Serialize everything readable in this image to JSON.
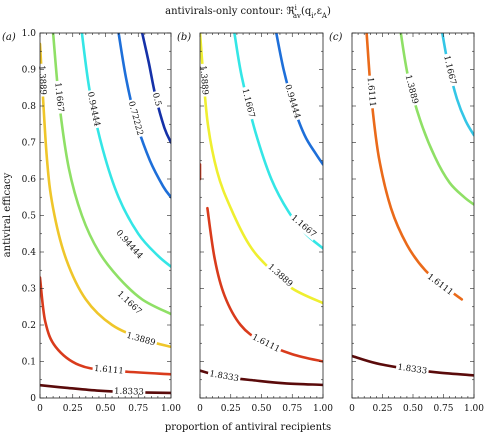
{
  "figure": {
    "title_prefix": "antivirals-only contour: ",
    "title_symbol": "ℜ",
    "title_superscript": "i",
    "title_subscript": "av",
    "title_args": "(q",
    "title_args_sub": "i",
    "title_args_mid": ",ε",
    "title_args_sub2": "A",
    "title_args_end": ")",
    "xlabel": "proportion of antiviral recipients",
    "ylabel": "antiviral efficacy"
  },
  "chart_data": [
    {
      "type": "contour",
      "panel_label": "(a)",
      "xlim": [
        0,
        1
      ],
      "ylim": [
        0,
        1
      ],
      "x_ticks": [
        "0",
        "0.25",
        "0.50",
        "0.75",
        "1.00"
      ],
      "y_ticks": [
        "0",
        "0.1",
        "0.2",
        "0.3",
        "0.4",
        "0.5",
        "0.6",
        "0.7",
        "0.8",
        "0.9",
        "1.0"
      ],
      "y_tick_values": [
        0,
        0.1,
        0.2,
        0.3,
        0.4,
        0.5,
        0.6,
        0.7,
        0.8,
        0.9,
        1.0
      ],
      "x_tick_values": [
        0,
        0.25,
        0.5,
        0.75,
        1.0
      ],
      "contours": [
        {
          "level": "1.8333",
          "color": "#5a0a0a",
          "points": [
            [
              0.0,
              0.035
            ],
            [
              0.2,
              0.028
            ],
            [
              0.45,
              0.02
            ],
            [
              0.7,
              0.016
            ],
            [
              1.0,
              0.014
            ]
          ],
          "label_at": 0.68
        },
        {
          "level": "1.6111",
          "color": "#d93b1c",
          "points": [
            [
              0.0,
              0.33
            ],
            [
              0.04,
              0.21
            ],
            [
              0.12,
              0.14
            ],
            [
              0.3,
              0.09
            ],
            [
              0.55,
              0.075
            ],
            [
              1.0,
              0.065
            ]
          ],
          "label_at": 0.68
        },
        {
          "level": "1.3889",
          "color": "#efc62a",
          "points": [
            [
              0.0,
              0.97
            ],
            [
              0.05,
              0.67
            ],
            [
              0.1,
              0.52
            ],
            [
              0.2,
              0.38
            ],
            [
              0.35,
              0.27
            ],
            [
              0.55,
              0.2
            ],
            [
              0.8,
              0.16
            ],
            [
              1.0,
              0.14
            ]
          ],
          "label_at": 0.1
        },
        {
          "level": "1.3889",
          "color": "#efc62a",
          "points": [],
          "label_at": 0.65,
          "label_only": true,
          "label_pos": [
            0.77,
            0.16
          ]
        },
        {
          "level": "1.1667",
          "color": "#8fe066",
          "points": [
            [
              0.1,
              1.0
            ],
            [
              0.15,
              0.8
            ],
            [
              0.22,
              0.63
            ],
            [
              0.32,
              0.5
            ],
            [
              0.45,
              0.4
            ],
            [
              0.6,
              0.33
            ],
            [
              0.78,
              0.27
            ],
            [
              1.0,
              0.23
            ]
          ],
          "label_at": 0.2
        },
        {
          "level": "1.1667",
          "color": "#8fe066",
          "points": [],
          "label_only": true,
          "label_pos": [
            0.68,
            0.26
          ]
        },
        {
          "level": "0.94444",
          "color": "#34e6e6",
          "points": [
            [
              0.32,
              1.0
            ],
            [
              0.38,
              0.84
            ],
            [
              0.48,
              0.68
            ],
            [
              0.6,
              0.55
            ],
            [
              0.75,
              0.45
            ],
            [
              0.9,
              0.39
            ],
            [
              1.0,
              0.36
            ]
          ],
          "label_at": 0.3
        },
        {
          "level": "0.94444",
          "color": "#34e6e6",
          "points": [],
          "label_only": true,
          "label_pos": [
            0.68,
            0.42
          ]
        },
        {
          "level": "0.72222",
          "color": "#1e6fd9",
          "points": [
            [
              0.6,
              1.0
            ],
            [
              0.66,
              0.87
            ],
            [
              0.74,
              0.75
            ],
            [
              0.84,
              0.65
            ],
            [
              0.94,
              0.58
            ],
            [
              1.0,
              0.55
            ]
          ],
          "label_at": 0.5
        },
        {
          "level": "0.5",
          "color": "#1531a8",
          "points": [
            [
              0.78,
              1.0
            ],
            [
              0.83,
              0.92
            ],
            [
              0.88,
              0.83
            ],
            [
              0.95,
              0.74
            ],
            [
              1.0,
              0.7
            ]
          ],
          "label_at": 0.6
        }
      ]
    },
    {
      "type": "contour",
      "panel_label": "(b)",
      "xlim": [
        0,
        1
      ],
      "ylim": [
        0,
        1
      ],
      "x_ticks": [
        "0",
        "0.25",
        "0.50",
        "0.75",
        "1.00"
      ],
      "x_tick_values": [
        0,
        0.25,
        0.5,
        0.75,
        1.0
      ],
      "contours": [
        {
          "level": "1.8333",
          "color": "#5a0a0a",
          "points": [
            [
              0.0,
              0.075
            ],
            [
              0.2,
              0.058
            ],
            [
              0.45,
              0.048
            ],
            [
              0.7,
              0.04
            ],
            [
              1.0,
              0.036
            ]
          ],
          "label_at": 0.2
        },
        {
          "level": "1.6111",
          "color": "#d93b1c",
          "points": [
            [
              0.0,
              0.64
            ],
            [
              0.0,
              0.6
            ]
          ],
          "label_at": -1
        },
        {
          "level": "1.6111",
          "color": "#d93b1c",
          "points": [
            [
              0.06,
              0.52
            ],
            [
              0.12,
              0.38
            ],
            [
              0.2,
              0.28
            ],
            [
              0.33,
              0.2
            ],
            [
              0.5,
              0.155
            ],
            [
              0.75,
              0.12
            ],
            [
              1.0,
              0.1
            ]
          ],
          "label_at": 0.72
        },
        {
          "level": "1.3889",
          "color": "#efef30",
          "points": [
            [
              0.0,
              1.0
            ],
            [
              0.06,
              0.76
            ],
            [
              0.14,
              0.62
            ],
            [
              0.25,
              0.52
            ],
            [
              0.4,
              0.42
            ],
            [
              0.55,
              0.36
            ],
            [
              0.75,
              0.3
            ],
            [
              1.0,
              0.26
            ]
          ],
          "label_at": 0.15
        },
        {
          "level": "1.3889",
          "color": "#efef30",
          "points": [],
          "label_only": true,
          "label_pos": [
            0.65,
            0.335
          ]
        },
        {
          "level": "1.1667",
          "color": "#34e6e6",
          "points": [
            [
              0.28,
              1.0
            ],
            [
              0.34,
              0.88
            ],
            [
              0.45,
              0.73
            ],
            [
              0.58,
              0.6
            ],
            [
              0.72,
              0.51
            ],
            [
              0.86,
              0.45
            ],
            [
              1.0,
              0.41
            ]
          ],
          "label_at": 0.3
        },
        {
          "level": "1.1667",
          "color": "#34e6e6",
          "points": [],
          "label_only": true,
          "label_pos": [
            0.84,
            0.47
          ]
        },
        {
          "level": "0.94444",
          "color": "#1e6fd9",
          "points": [
            [
              0.62,
              1.0
            ],
            [
              0.68,
              0.9
            ],
            [
              0.76,
              0.8
            ],
            [
              0.85,
              0.72
            ],
            [
              0.94,
              0.67
            ],
            [
              1.0,
              0.64
            ]
          ],
          "label_at": 0.5
        }
      ]
    },
    {
      "type": "contour",
      "panel_label": "(c)",
      "xlim": [
        0,
        1
      ],
      "ylim": [
        0,
        1
      ],
      "x_ticks": [
        "0",
        "0.25",
        "0.50",
        "0.75",
        "1.00"
      ],
      "x_tick_values": [
        0,
        0.25,
        0.5,
        0.75,
        1.0
      ],
      "contours": [
        {
          "level": "1.8333",
          "color": "#5a0a0a",
          "points": [
            [
              0.0,
              0.115
            ],
            [
              0.2,
              0.095
            ],
            [
              0.45,
              0.08
            ],
            [
              0.7,
              0.07
            ],
            [
              1.0,
              0.062
            ]
          ],
          "label_at": 0.5
        },
        {
          "level": "1.6111",
          "color": "#ea6a1a",
          "points": [
            [
              0.12,
              1.0
            ],
            [
              0.16,
              0.82
            ],
            [
              0.22,
              0.66
            ],
            [
              0.32,
              0.52
            ],
            [
              0.45,
              0.42
            ],
            [
              0.6,
              0.35
            ],
            [
              0.78,
              0.3
            ],
            [
              0.9,
              0.27
            ]
          ],
          "label_at": 0.2
        },
        {
          "level": "1.6111",
          "color": "#ea6a1a",
          "points": [],
          "label_only": true,
          "label_pos": [
            0.72,
            0.31
          ]
        },
        {
          "level": "1.3889",
          "color": "#8fe066",
          "points": [
            [
              0.4,
              1.0
            ],
            [
              0.46,
              0.88
            ],
            [
              0.56,
              0.76
            ],
            [
              0.68,
              0.66
            ],
            [
              0.8,
              0.59
            ],
            [
              0.92,
              0.55
            ],
            [
              1.0,
              0.53
            ]
          ],
          "label_at": 0.3
        },
        {
          "level": "1.1667",
          "color": "#34c6e6",
          "points": [
            [
              0.74,
              1.0
            ],
            [
              0.79,
              0.91
            ],
            [
              0.86,
              0.82
            ],
            [
              0.93,
              0.76
            ],
            [
              1.0,
              0.72
            ]
          ],
          "label_at": 0.35
        }
      ]
    }
  ]
}
